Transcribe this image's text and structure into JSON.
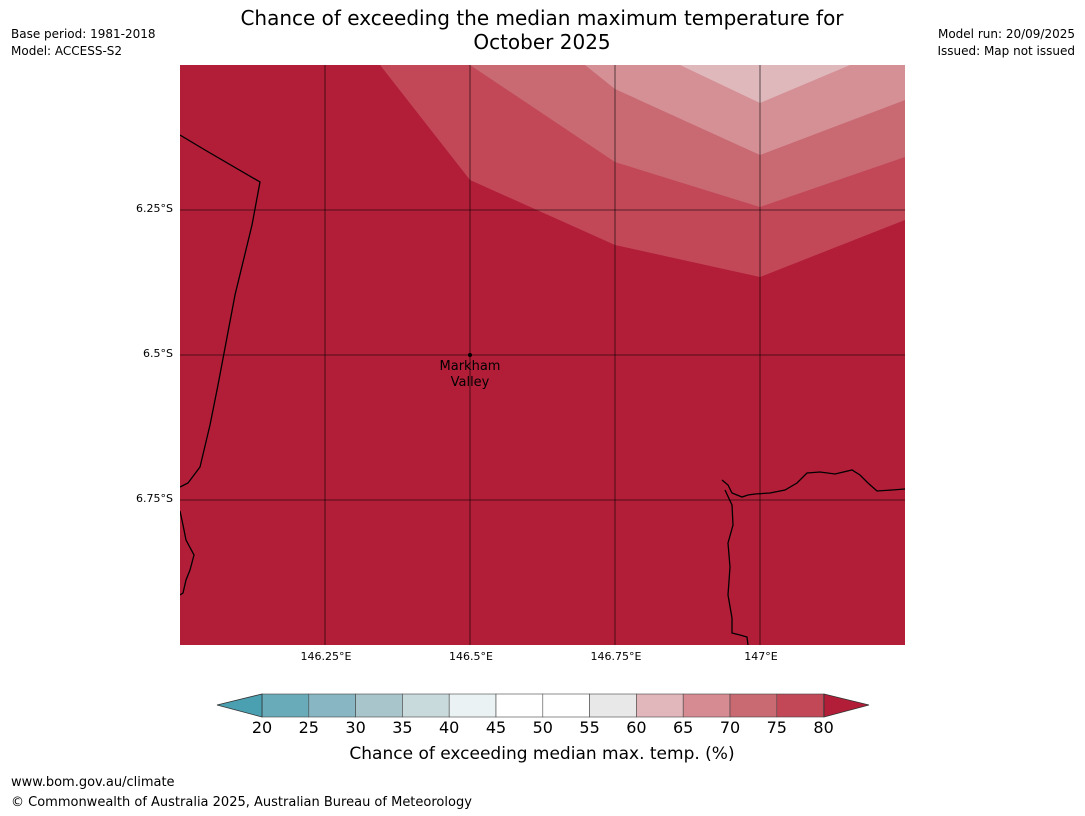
{
  "header": {
    "base_period": "Base period: 1981-2018",
    "model": "Model: ACCESS-S2",
    "model_run": "Model run: 20/09/2025",
    "issued": "Issued: Map not issued",
    "title_line1": "Chance of exceeding the median maximum temperature for",
    "title_line2": "October 2025"
  },
  "map": {
    "lat_labels": [
      "6.25°S",
      "6.5°S",
      "6.75°S"
    ],
    "lon_labels": [
      "146.25°E",
      "146.5°E",
      "146.75°E",
      "147°E"
    ],
    "place": {
      "line1": "Markham",
      "line2": "Valley"
    },
    "colors": {
      "band_80_plus": "#b21e38",
      "band_75_80": "#c24858",
      "band_70_75": "#c96a73",
      "band_65_70": "#d59096",
      "band_60_65": "#dfb8bc"
    }
  },
  "colorbar": {
    "title": "Chance of exceeding median max. temp. (%)",
    "ticks": [
      "20",
      "25",
      "30",
      "35",
      "40",
      "45",
      "50",
      "55",
      "60",
      "65",
      "70",
      "75",
      "80"
    ],
    "under_color": "#4a9fb0",
    "over_color": "#b21e38",
    "colors": [
      "#6aabb9",
      "#89b6c3",
      "#a8c5cc",
      "#c9dadd",
      "#ebf2f3",
      "#ffffff",
      "#ffffff",
      "#e8e8e8",
      "#e2b7bb",
      "#d68b93",
      "#c96a73",
      "#c24858"
    ]
  },
  "footer": {
    "url": "www.bom.gov.au/climate",
    "copyright": "© Commonwealth of Australia 2025, Australian Bureau of Meteorology"
  }
}
